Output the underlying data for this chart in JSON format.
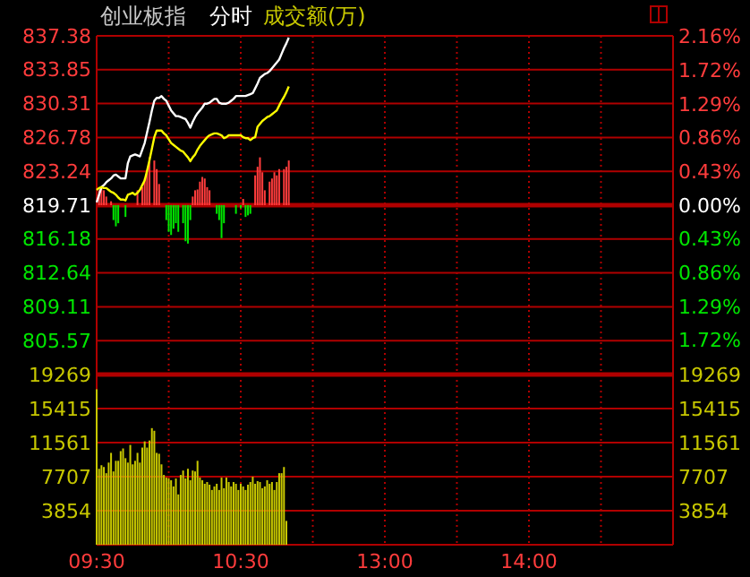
{
  "chart_data": [
    {
      "type": "line",
      "title": "创业板指",
      "subtitle": "分时",
      "annotations": [
        "成交额(万)"
      ],
      "categories": [
        null,
        null,
        null,
        null,
        null,
        null,
        null,
        null,
        null,
        null,
        null,
        null,
        null,
        null,
        null,
        null,
        null,
        null,
        null,
        null,
        null,
        null,
        null,
        null,
        null,
        null,
        null,
        null,
        null,
        null,
        null,
        null,
        null,
        null,
        null,
        null,
        null,
        null,
        null,
        null,
        null,
        null,
        null,
        null,
        null,
        null,
        null,
        null,
        null,
        null,
        null,
        null,
        null,
        null,
        null,
        null,
        null,
        null,
        null,
        null,
        null,
        null,
        null,
        null,
        null,
        null,
        null,
        null,
        null,
        null,
        null,
        null,
        null,
        null,
        null,
        null,
        null,
        null,
        null,
        null,
        null,
        null,
        null,
        null,
        null,
        null,
        null,
        null,
        null,
        null,
        null,
        null,
        null,
        null,
        null,
        null,
        null,
        null,
        null,
        null,
        null,
        null,
        null,
        null,
        null,
        null,
        null,
        null,
        null,
        null,
        null,
        null,
        null,
        null,
        null,
        null,
        null,
        null,
        null,
        null,
        null,
        null,
        null,
        null,
        null,
        null,
        null,
        null,
        null,
        null,
        null,
        null,
        null,
        null,
        null,
        null,
        null,
        null,
        null,
        null,
        null,
        null,
        null,
        null,
        null,
        null,
        null,
        null,
        null,
        null,
        null,
        null,
        null,
        null,
        null,
        null,
        null,
        null,
        null,
        null,
        null,
        null,
        null,
        null,
        null,
        null,
        null,
        null,
        null,
        null,
        null,
        null,
        null,
        null,
        null,
        null,
        null,
        null,
        null,
        null,
        null,
        null,
        null,
        null,
        null,
        null,
        null,
        null,
        null,
        null,
        null,
        null,
        null,
        null,
        null,
        null,
        null,
        null,
        null,
        null,
        null,
        null,
        null,
        null,
        null,
        null,
        null,
        null,
        null,
        null,
        null,
        null,
        null,
        null,
        null,
        null,
        null,
        null,
        null,
        null,
        null,
        null,
        null,
        null,
        null,
        null,
        null,
        null,
        null,
        null,
        null,
        null,
        null,
        null,
        null,
        null,
        null,
        null,
        null,
        null,
        null
      ],
      "tick_labels": "y",
      "ylim": [
        802.04,
        837.38
      ],
      "yticks": [
        837.38,
        833.85,
        830.31,
        826.78,
        823.24,
        819.71,
        816.18,
        812.64,
        809.11,
        805.57
      ],
      "y2lim": [
        -2.16,
        2.16
      ],
      "y2ticks": [
        {
          "value": 2.16,
          "label": "2.16%"
        },
        {
          "value": 1.72,
          "label": "1.72%"
        },
        {
          "value": 1.29,
          "label": "1.29%"
        },
        {
          "value": 0.86,
          "label": "0.86%"
        },
        {
          "value": 0.43,
          "label": "0.43%"
        },
        {
          "value": 0,
          "label": "0.00%"
        },
        {
          "value": -0.43,
          "label": "0.43%"
        },
        {
          "value": -0.86,
          "label": "0.86%"
        },
        {
          "value": -1.29,
          "label": "1.29%"
        },
        {
          "value": -1.72,
          "label": "1.72%"
        }
      ],
      "grid": true,
      "line_style": "solid",
      "ref_lines": [
        {
          "axis": "y2",
          "value": 0,
          "color": "#b00000"
        }
      ],
      "series": [
        {
          "type": "bar",
          "axis": "y2",
          "color": "#ff3c3c",
          "values": [
            null,
            0.19,
            0.23,
            0.19,
            0.11,
            null,
            0.05,
            null,
            null,
            null,
            null,
            null,
            null,
            null,
            null,
            null,
            null,
            0.19,
            null,
            0.23,
            0.34,
            0.42,
            0.61,
            null,
            0.57,
            0.46,
            0.27,
            null,
            null,
            null,
            null,
            null,
            null,
            null,
            null,
            null,
            null,
            null,
            null,
            null,
            0.11,
            0.19,
            0.2,
            0.3,
            0.36,
            0.34,
            0.23,
            0.19,
            null,
            null,
            null,
            null,
            null,
            null,
            null,
            null,
            null,
            null,
            null,
            null,
            null,
            0.08,
            null,
            null,
            null,
            null,
            0.38,
            0.49,
            0.61,
            0.42,
            0.19,
            null,
            0.3,
            0.34,
            0.42,
            0.38,
            0.46,
            null,
            0.46,
            0.49,
            0.57,
            null,
            null,
            null,
            null,
            null,
            null,
            null,
            null,
            null,
            null,
            null,
            null,
            null,
            null,
            null,
            null,
            null,
            null,
            null,
            null,
            null,
            null,
            null,
            null,
            null,
            null,
            null,
            null,
            null,
            null,
            null,
            null,
            null,
            null,
            null,
            null,
            null,
            null,
            null,
            null,
            null,
            null,
            null,
            null,
            null,
            null,
            null,
            null,
            null,
            null,
            null,
            null,
            null,
            null,
            null,
            null,
            null,
            null,
            null,
            null,
            null,
            null,
            null,
            null,
            null,
            null,
            null,
            null,
            null,
            null,
            null,
            null,
            null,
            null,
            null,
            null,
            null,
            null,
            null,
            null,
            null,
            null,
            null,
            null,
            null,
            null,
            null,
            null,
            null,
            null,
            null,
            null,
            null,
            null,
            null,
            null,
            null,
            null,
            null,
            null,
            null,
            null,
            null,
            null,
            null,
            null,
            null,
            null,
            null,
            null,
            null,
            null,
            null,
            null,
            null,
            null,
            null,
            null,
            null,
            null,
            null,
            null,
            null,
            null,
            null,
            null,
            null,
            null,
            null,
            null,
            null,
            null,
            null,
            null,
            null,
            null,
            null,
            null,
            null,
            null,
            null,
            null,
            null,
            null,
            null,
            null,
            null,
            null,
            null,
            null,
            null,
            null,
            null,
            null,
            null,
            null,
            null,
            null,
            null,
            null
          ]
        },
        {
          "type": "bar",
          "axis": "y2",
          "color": "#00e600",
          "values": [
            null,
            null,
            null,
            null,
            null,
            null,
            null,
            -0.19,
            -0.27,
            -0.23,
            null,
            null,
            -0.15,
            null,
            null,
            null,
            null,
            null,
            null,
            null,
            null,
            null,
            null,
            null,
            null,
            null,
            null,
            null,
            null,
            -0.19,
            -0.34,
            -0.38,
            -0.3,
            -0.23,
            -0.34,
            null,
            -0.23,
            -0.46,
            -0.49,
            -0.19,
            null,
            null,
            null,
            null,
            null,
            null,
            null,
            null,
            null,
            null,
            -0.11,
            -0.19,
            -0.42,
            -0.23,
            null,
            null,
            null,
            null,
            -0.11,
            null,
            -0.04,
            null,
            -0.15,
            -0.13,
            -0.11,
            null,
            null,
            null,
            null,
            null,
            null,
            null,
            null,
            null,
            null,
            null,
            null,
            null,
            null,
            null,
            null,
            null,
            null,
            null,
            null,
            null,
            null,
            null,
            null,
            null,
            null,
            null,
            null,
            null,
            null,
            null,
            null,
            null,
            null,
            null,
            null,
            null,
            null,
            null,
            null,
            null,
            null,
            null,
            null,
            null,
            null,
            null,
            null,
            null,
            null,
            null,
            null,
            null,
            null,
            null,
            null,
            null,
            null,
            null,
            null,
            null,
            null,
            null,
            null,
            null,
            null,
            null,
            null,
            null,
            null,
            null,
            null,
            null,
            null,
            null,
            null,
            null,
            null,
            null,
            null,
            null,
            null,
            null,
            null,
            null,
            null,
            null,
            null,
            null,
            null,
            null,
            null,
            null,
            null,
            null,
            null,
            null,
            null,
            null,
            null,
            null,
            null,
            null,
            null,
            null,
            null,
            null,
            null,
            null,
            null,
            null,
            null,
            null,
            null,
            null,
            null,
            null,
            null,
            null,
            null,
            null,
            null,
            null,
            null,
            null,
            null,
            null,
            null,
            null,
            null,
            null,
            null,
            null,
            null,
            null,
            null,
            null,
            null,
            null,
            null,
            null,
            null,
            null,
            null,
            null,
            null,
            null,
            null,
            null,
            null,
            null,
            null,
            null,
            null,
            null,
            null,
            null,
            null,
            null,
            null,
            null,
            null,
            null,
            null,
            null,
            null,
            null,
            null,
            null,
            null,
            null,
            null,
            null,
            null,
            null,
            null
          ]
        },
        {
          "color": "#ffffff",
          "values": [
            820.0,
            820.8,
            821.6,
            821.8,
            822.1,
            822.3,
            822.5,
            822.8,
            822.9,
            822.7,
            822.5,
            822.5,
            822.5,
            824.1,
            824.8,
            824.9,
            825.0,
            824.9,
            824.8,
            825.5,
            826.2,
            827.3,
            828.4,
            829.6,
            830.6,
            830.9,
            830.9,
            831.1,
            830.8,
            830.6,
            830.1,
            829.6,
            829.3,
            829.0,
            829.0,
            828.9,
            828.8,
            828.7,
            828.3,
            827.8,
            828.4,
            828.9,
            829.3,
            829.6,
            829.9,
            830.3,
            830.3,
            830.4,
            830.6,
            830.8,
            830.8,
            830.4,
            830.3,
            830.3,
            830.3,
            830.4,
            830.6,
            830.8,
            831.1,
            831.1,
            831.1,
            831.1,
            831.1,
            831.2,
            831.3,
            831.4,
            831.9,
            832.4,
            833.0,
            833.2,
            833.4,
            833.5,
            833.7,
            834.0,
            834.3,
            834.6,
            834.9,
            835.5,
            836.1,
            836.6,
            837.2,
            null,
            null,
            null,
            null,
            null,
            null,
            null,
            null,
            null,
            null,
            null,
            null,
            null,
            null,
            null,
            null,
            null,
            null,
            null,
            null,
            null,
            null,
            null,
            null,
            null,
            null,
            null,
            null,
            null,
            null,
            null,
            null,
            null,
            null,
            null,
            null,
            null,
            null,
            null,
            null,
            null,
            null,
            null,
            null,
            null,
            null,
            null,
            null,
            null,
            null,
            null,
            null,
            null,
            null,
            null,
            null,
            null,
            null,
            null,
            null,
            null,
            null,
            null,
            null,
            null,
            null,
            null,
            null,
            null,
            null,
            null,
            null,
            null,
            null,
            null,
            null,
            null,
            null,
            null,
            null,
            null,
            null,
            null,
            null,
            null,
            null,
            null,
            null,
            null,
            null,
            null,
            null,
            null,
            null,
            null,
            null,
            null,
            null,
            null,
            null,
            null,
            null,
            null,
            null,
            null,
            null,
            null,
            null,
            null,
            null,
            null,
            null,
            null,
            null,
            null,
            null,
            null,
            null,
            null,
            null,
            null,
            null,
            null,
            null,
            null,
            null,
            null,
            null,
            null,
            null,
            null,
            null,
            null,
            null,
            null,
            null,
            null,
            null,
            null,
            null,
            null,
            null,
            null,
            null,
            null,
            null,
            null,
            null,
            null,
            null,
            null,
            null,
            null,
            null,
            null,
            null,
            null,
            null,
            null,
            null
          ]
        },
        {
          "color": "#ffff00",
          "values": [
            821.3,
            821.5,
            821.6,
            821.5,
            821.5,
            821.3,
            821.1,
            821.0,
            820.8,
            820.5,
            820.3,
            820.3,
            820.2,
            820.8,
            820.9,
            821.0,
            820.8,
            821.0,
            821.3,
            821.8,
            822.3,
            823.3,
            824.4,
            825.6,
            826.8,
            827.5,
            827.5,
            827.5,
            827.2,
            827.0,
            826.6,
            826.2,
            826.0,
            825.8,
            825.6,
            825.4,
            825.3,
            825.0,
            824.7,
            824.3,
            824.7,
            825.0,
            825.5,
            825.9,
            826.2,
            826.5,
            826.8,
            827.0,
            827.1,
            827.2,
            827.2,
            827.1,
            827.0,
            826.7,
            826.8,
            827.0,
            827.0,
            827.0,
            827.0,
            827.0,
            827.0,
            826.8,
            826.7,
            826.7,
            826.5,
            826.7,
            826.8,
            827.9,
            828.2,
            828.5,
            828.7,
            828.9,
            829.0,
            829.2,
            829.4,
            829.6,
            830.1,
            830.6,
            831.0,
            831.5,
            832.1,
            null,
            null,
            null,
            null,
            null,
            null,
            null,
            null,
            null,
            null,
            null,
            null,
            null,
            null,
            null,
            null,
            null,
            null,
            null,
            null,
            null,
            null,
            null,
            null,
            null,
            null,
            null,
            null,
            null,
            null,
            null,
            null,
            null,
            null,
            null,
            null,
            null,
            null,
            null,
            null,
            null,
            null,
            null,
            null,
            null,
            null,
            null,
            null,
            null,
            null,
            null,
            null,
            null,
            null,
            null,
            null,
            null,
            null,
            null,
            null,
            null,
            null,
            null,
            null,
            null,
            null,
            null,
            null,
            null,
            null,
            null,
            null,
            null,
            null,
            null,
            null,
            null,
            null,
            null,
            null,
            null,
            null,
            null,
            null,
            null,
            null,
            null,
            null,
            null,
            null,
            null,
            null,
            null,
            null,
            null,
            null,
            null,
            null,
            null,
            null,
            null,
            null,
            null,
            null,
            null,
            null,
            null,
            null,
            null,
            null,
            null,
            null,
            null,
            null,
            null,
            null,
            null,
            null,
            null,
            null,
            null,
            null,
            null,
            null,
            null,
            null,
            null,
            null,
            null,
            null,
            null,
            null,
            null,
            null,
            null,
            null,
            null,
            null,
            null,
            null,
            null,
            null,
            null,
            null,
            null,
            null,
            null,
            null,
            null,
            null,
            null,
            null,
            null,
            null,
            null,
            null,
            null,
            null,
            null,
            null
          ]
        }
      ]
    },
    {
      "type": "bar",
      "color": "#c8c800",
      "categories": [
        "09:30",
        null,
        null,
        null,
        null,
        null,
        null,
        null,
        null,
        null,
        null,
        null,
        null,
        null,
        null,
        null,
        null,
        null,
        null,
        null,
        null,
        null,
        null,
        null,
        null,
        null,
        null,
        null,
        null,
        null,
        null,
        null,
        null,
        null,
        null,
        null,
        null,
        null,
        null,
        null,
        null,
        null,
        null,
        null,
        null,
        null,
        null,
        null,
        null,
        null,
        null,
        null,
        null,
        null,
        null,
        null,
        null,
        null,
        null,
        null,
        "10:30",
        null,
        null,
        null,
        null,
        null,
        null,
        null,
        null,
        null,
        null,
        null,
        null,
        null,
        null,
        null,
        null,
        null,
        null,
        null,
        null,
        null,
        null,
        null,
        null,
        null,
        null,
        null,
        null,
        null,
        null,
        null,
        null,
        null,
        null,
        null,
        null,
        null,
        null,
        null,
        null,
        null,
        null,
        null,
        null,
        null,
        null,
        null,
        null,
        null,
        null,
        null,
        null,
        null,
        null,
        null,
        null,
        null,
        null,
        null,
        "13:00",
        null,
        null,
        null,
        null,
        null,
        null,
        null,
        null,
        null,
        null,
        null,
        null,
        null,
        null,
        null,
        null,
        null,
        null,
        null,
        null,
        null,
        null,
        null,
        null,
        null,
        null,
        null,
        null,
        null,
        null,
        null,
        null,
        null,
        null,
        null,
        null,
        null,
        null,
        null,
        null,
        null,
        null,
        null,
        null,
        null,
        null,
        null,
        null,
        null,
        null,
        null,
        null,
        null,
        null,
        null,
        null,
        null,
        null,
        null,
        "14:00",
        null,
        null,
        null,
        null,
        null,
        null,
        null,
        null,
        null,
        null,
        null,
        null,
        null,
        null,
        null,
        null,
        null,
        null,
        null,
        null,
        null,
        null,
        null,
        null,
        null,
        null,
        null,
        null,
        null,
        null,
        null,
        null,
        null,
        null,
        null,
        null,
        null,
        null,
        null,
        null,
        null,
        null,
        null,
        null,
        null,
        null,
        null,
        null,
        null,
        null,
        null,
        null,
        null,
        null,
        null,
        null,
        null,
        null,
        null,
        null
      ],
      "values": [
        17600,
        8600,
        9000,
        8800,
        8100,
        9300,
        10400,
        8300,
        9500,
        9500,
        10600,
        10900,
        9800,
        9300,
        11300,
        9100,
        9500,
        10400,
        9300,
        11000,
        11700,
        11000,
        11800,
        13200,
        12900,
        10400,
        10300,
        9100,
        7900,
        7600,
        7500,
        7300,
        6600,
        7500,
        5700,
        7900,
        8400,
        7500,
        8600,
        7300,
        8400,
        8300,
        9500,
        7600,
        7300,
        6900,
        7100,
        6800,
        6200,
        6600,
        6900,
        6200,
        7600,
        6400,
        7600,
        7100,
        6600,
        7100,
        6900,
        6200,
        6900,
        6600,
        6200,
        6800,
        7100,
        7700,
        6900,
        7200,
        7100,
        6400,
        6600,
        7300,
        6900,
        7100,
        6200,
        7100,
        8100,
        8100,
        8800,
        2700,
        null,
        null,
        null,
        null,
        null,
        null,
        null,
        null,
        null,
        null,
        null,
        null,
        null,
        null,
        null,
        null,
        null,
        null,
        null,
        null,
        null,
        null,
        null,
        null,
        null,
        null,
        null,
        null,
        null,
        null,
        null,
        null,
        null,
        null,
        null,
        null,
        null,
        null,
        null,
        null,
        null,
        null,
        null,
        null,
        null,
        null,
        null,
        null,
        null,
        null,
        null,
        null,
        null,
        null,
        null,
        null,
        null,
        null,
        null,
        null,
        null,
        null,
        null,
        null,
        null,
        null,
        null,
        null,
        null,
        null,
        null,
        null,
        null,
        null,
        null,
        null,
        null,
        null,
        null,
        null,
        null,
        null,
        null,
        null,
        null,
        null,
        null,
        null,
        null,
        null,
        null,
        null,
        null,
        null,
        null,
        null,
        null,
        null,
        null,
        null,
        null,
        null,
        null,
        null,
        null,
        null,
        null,
        null,
        null,
        null,
        null,
        null,
        null,
        null,
        null,
        null,
        null,
        null,
        null,
        null,
        null,
        null,
        null,
        null,
        null,
        null,
        null,
        null,
        null,
        null,
        null,
        null,
        null,
        null,
        null,
        null,
        null,
        null,
        null,
        null,
        null,
        null,
        null,
        null,
        null,
        null,
        null,
        null,
        null,
        null,
        null,
        null,
        null,
        null,
        null,
        null,
        null,
        null,
        null,
        null,
        null
      ],
      "ylim": [
        0,
        19269
      ],
      "yticks": [
        19269,
        15415,
        11561,
        7707,
        3854
      ],
      "y2lim": [
        0,
        19269
      ],
      "y2ticks": [
        19269,
        15415,
        11561,
        7707,
        3854
      ],
      "grid": true
    }
  ]
}
